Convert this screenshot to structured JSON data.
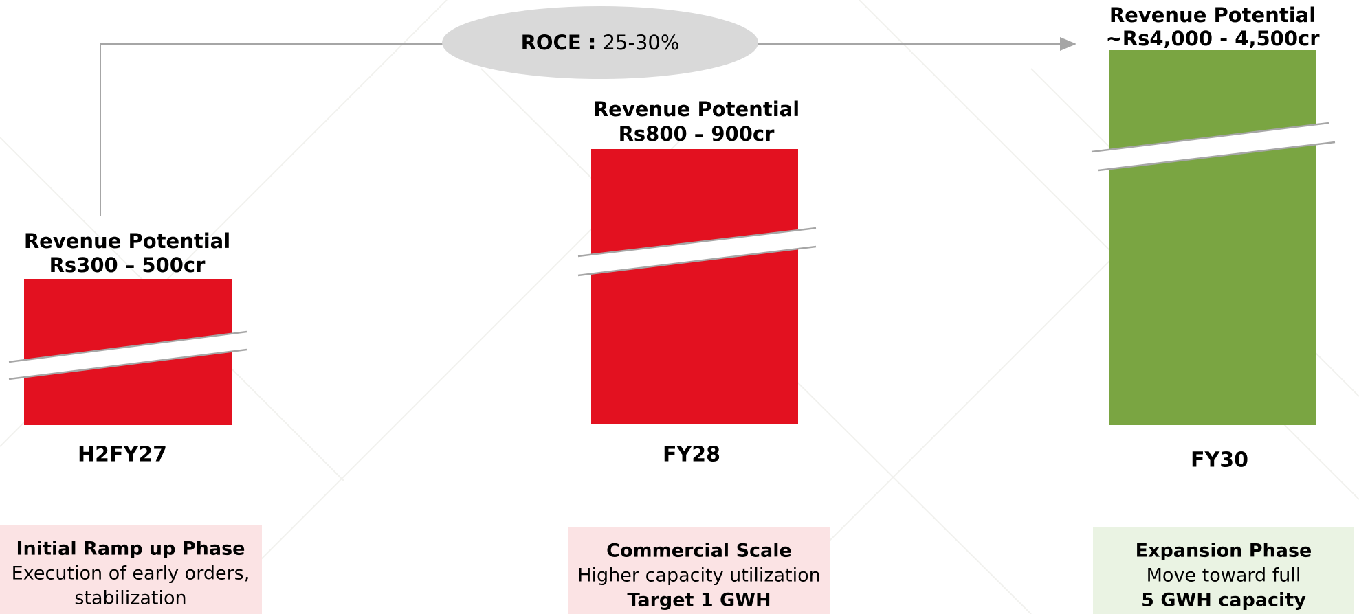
{
  "roce": {
    "label": "ROCE :",
    "value": "25-30%"
  },
  "phases": [
    {
      "revenue_title": "Revenue Potential",
      "revenue_range": "Rs300 – 500cr",
      "period": "H2FY27",
      "lines": [
        "Initial Ramp  up Phase",
        "Execution of early orders,",
        "stabilization"
      ]
    },
    {
      "revenue_title": "Revenue Potential",
      "revenue_range": "Rs800 – 900cr",
      "period": "FY28",
      "lines": [
        "Commercial Scale",
        "Higher capacity utilization",
        "Target 1 GWH"
      ]
    },
    {
      "revenue_title": "Revenue Potential",
      "revenue_range": "~Rs4,000 - 4,500cr",
      "period": "FY30",
      "lines": [
        "Expansion Phase",
        "Move toward full",
        "5 GWH capacity"
      ]
    }
  ]
}
